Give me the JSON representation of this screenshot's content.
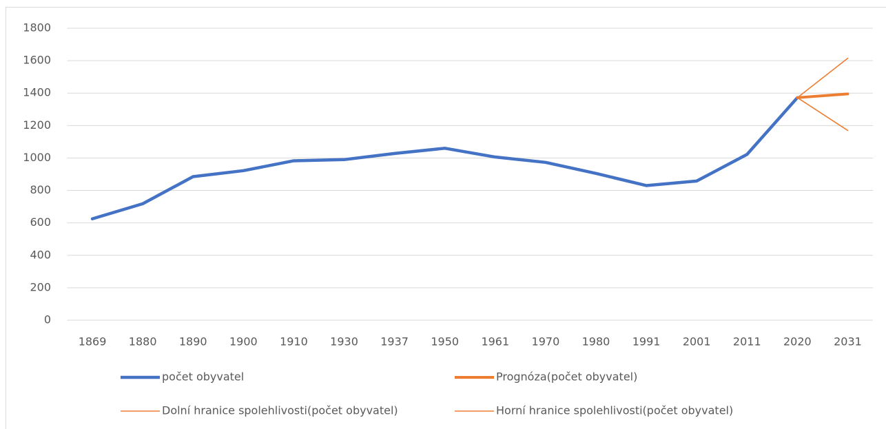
{
  "chart_data": {
    "type": "line",
    "categories": [
      "1869",
      "1880",
      "1890",
      "1900",
      "1910",
      "1930",
      "1937",
      "1950",
      "1961",
      "1970",
      "1980",
      "1991",
      "2001",
      "2011",
      "2020",
      "2031"
    ],
    "series": [
      {
        "name": "počet obyvatel",
        "color": "#4472c4",
        "values": [
          625,
          718,
          885,
          922,
          983,
          990,
          1028,
          1060,
          1006,
          973,
          905,
          830,
          858,
          1022,
          1372,
          null
        ]
      },
      {
        "name": "Prognóza(počet obyvatel)",
        "color": "#ed7d31",
        "values": [
          null,
          null,
          null,
          null,
          null,
          null,
          null,
          null,
          null,
          null,
          null,
          null,
          null,
          null,
          1372,
          1395
        ]
      },
      {
        "name": "Dolní hranice spolehlivosti(počet obyvatel)",
        "color": "#ed7d31",
        "values": [
          null,
          null,
          null,
          null,
          null,
          null,
          null,
          null,
          null,
          null,
          null,
          null,
          null,
          null,
          1372,
          1170
        ]
      },
      {
        "name": "Horní hranice spolehlivosti(počet obyvatel)",
        "color": "#ed7d31",
        "values": [
          null,
          null,
          null,
          null,
          null,
          null,
          null,
          null,
          null,
          null,
          null,
          null,
          null,
          null,
          1372,
          1615
        ]
      }
    ],
    "ylim": [
      0,
      1800
    ],
    "yticks": [
      0,
      200,
      400,
      600,
      800,
      1000,
      1200,
      1400,
      1600,
      1800
    ],
    "grid": true,
    "legend": "bottom"
  }
}
